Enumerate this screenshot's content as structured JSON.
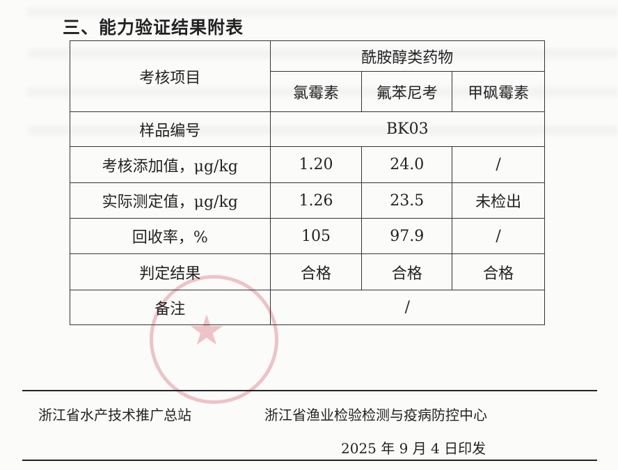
{
  "section_title": "三、能力验证结果附表",
  "table": {
    "header_item": "考核项目",
    "header_group": "酰胺醇类药物",
    "columns": [
      "氯霉素",
      "氟苯尼考",
      "甲砜霉素"
    ],
    "sample_label": "样品编号",
    "sample_id": "BK03",
    "rows": [
      {
        "label": "考核添加值，μg/kg",
        "values": [
          "1.20",
          "24.0",
          "/"
        ]
      },
      {
        "label": "实际测定值，μg/kg",
        "values": [
          "1.26",
          "23.5",
          "未检出"
        ]
      },
      {
        "label": "回收率，%",
        "values": [
          "105",
          "97.9",
          "/"
        ]
      },
      {
        "label": "判定结果",
        "values": [
          "合格",
          "合格",
          "合格"
        ]
      }
    ],
    "remark_label": "备注",
    "remark_value": "/"
  },
  "footer": {
    "issuer1": "浙江省水产技术推广总站",
    "issuer2": "浙江省渔业检验检测与疫病防控中心",
    "date": "2025 年 9 月 4 日印发"
  },
  "stamp_color": "#d75a64"
}
